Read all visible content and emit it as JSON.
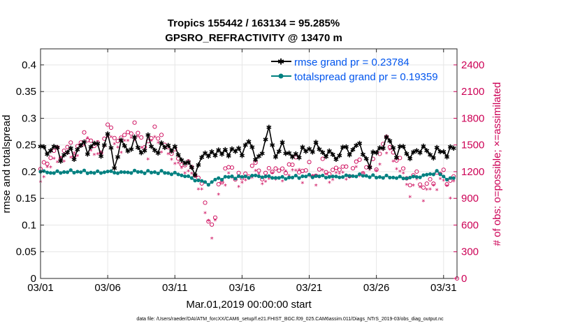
{
  "chart_data": {
    "type": "line",
    "title": "Tropics 155442 / 163134 = 95.285%",
    "subtitle": "GPSRO_REFRACTIVITY @ 13470 m",
    "xlabel": "Mar.01,2019 00:00:00 start",
    "ylabel": "rmse and totalspread",
    "y2label": "# of obs: o=possible; ×=assimilated",
    "footer": "data file: /Users/raeder/DAI/ATM_forcXX/CAM6_setup/f.e21.FHIST_BGC.f09_025.CAM6assim.011/Diags_NTrS_2019-03/obs_diag_output.nc",
    "x_tick_labels": [
      "03/01",
      "03/06",
      "03/11",
      "03/16",
      "03/21",
      "03/26",
      "03/31"
    ],
    "x_tick_days": [
      1,
      6,
      11,
      16,
      21,
      26,
      31
    ],
    "xlim_days": [
      1,
      32
    ],
    "ylim": [
      0,
      0.43
    ],
    "y_ticks": [
      0,
      0.05,
      0.1,
      0.15,
      0.2,
      0.25,
      0.3,
      0.35,
      0.4
    ],
    "y_tick_labels": [
      "0",
      "0.05",
      "0.1",
      "0.15",
      "0.2",
      "0.25",
      "0.3",
      "0.35",
      "0.4"
    ],
    "y2lim": [
      0,
      2580
    ],
    "y2_ticks": [
      0,
      300,
      600,
      900,
      1200,
      1500,
      1800,
      2100,
      2400
    ],
    "y2_tick_labels": [
      "0",
      "300",
      "600",
      "900",
      "1200",
      "1500",
      "1800",
      "2100",
      "2400"
    ],
    "colors": {
      "rmse": "#000000",
      "spread": "#008080",
      "obs": "#cc0055",
      "legend_text": "#0055ee",
      "axis": "#262626",
      "grid": "#e6e6e6"
    },
    "legend": [
      {
        "label": "rmse grand pr = 0.23784",
        "series": "rmse"
      },
      {
        "label": "totalspread grand pr = 0.19359",
        "series": "spread"
      }
    ],
    "rmse_anchors": {
      "x": [
        1.0,
        1.5,
        2.0,
        2.5,
        3.0,
        3.5,
        4.0,
        4.5,
        5.0,
        5.5,
        6.0,
        6.5,
        7.0,
        7.5,
        8.0,
        8.5,
        9.0,
        9.5,
        10.0,
        10.5,
        11.0,
        11.5,
        12.0,
        12.5,
        13.0,
        13.5,
        14.0,
        14.5,
        15.0,
        15.5,
        16.0,
        16.5,
        17.0,
        17.5,
        18.0,
        18.5,
        19.0,
        19.5,
        20.0,
        20.5,
        21.0,
        21.5,
        22.0,
        22.5,
        23.0,
        23.5,
        24.0,
        24.5,
        25.0,
        25.5,
        26.0,
        26.5,
        27.0,
        27.5,
        28.0,
        28.5,
        29.0,
        29.5,
        30.0,
        30.5,
        31.0,
        31.5,
        31.75
      ],
      "y": [
        0.248,
        0.235,
        0.25,
        0.225,
        0.24,
        0.23,
        0.253,
        0.24,
        0.255,
        0.235,
        0.27,
        0.21,
        0.255,
        0.24,
        0.258,
        0.235,
        0.26,
        0.24,
        0.245,
        0.25,
        0.24,
        0.225,
        0.213,
        0.2,
        0.225,
        0.238,
        0.23,
        0.243,
        0.23,
        0.248,
        0.23,
        0.265,
        0.22,
        0.24,
        0.278,
        0.23,
        0.248,
        0.235,
        0.225,
        0.245,
        0.235,
        0.255,
        0.23,
        0.24,
        0.22,
        0.25,
        0.232,
        0.255,
        0.235,
        0.215,
        0.24,
        0.25,
        0.262,
        0.23,
        0.25,
        0.225,
        0.24,
        0.245,
        0.23,
        0.24,
        0.235,
        0.24,
        0.245
      ]
    },
    "spread_anchors": {
      "x": [
        1.0,
        2.0,
        3.0,
        4.0,
        5.0,
        6.0,
        7.0,
        8.0,
        9.0,
        10.0,
        11.0,
        11.5,
        12.0,
        12.5,
        13.0,
        13.2,
        13.4,
        13.6,
        13.8,
        14.0,
        14.5,
        15.0,
        16.0,
        17.0,
        18.0,
        19.0,
        20.0,
        21.0,
        22.0,
        23.0,
        24.0,
        25.0,
        26.0,
        27.0,
        28.0,
        29.0,
        30.0,
        30.5,
        31.0,
        31.5,
        31.75
      ],
      "y": [
        0.2,
        0.198,
        0.2,
        0.2,
        0.198,
        0.2,
        0.198,
        0.2,
        0.199,
        0.199,
        0.196,
        0.194,
        0.19,
        0.185,
        0.182,
        0.18,
        0.178,
        0.178,
        0.18,
        0.185,
        0.188,
        0.19,
        0.19,
        0.192,
        0.19,
        0.188,
        0.19,
        0.192,
        0.191,
        0.19,
        0.192,
        0.193,
        0.19,
        0.19,
        0.188,
        0.19,
        0.195,
        0.2,
        0.19,
        0.186,
        0.188
      ]
    },
    "obs_possible_anchors": {
      "x": [
        1.0,
        1.5,
        2.0,
        2.5,
        3.0,
        3.5,
        4.0,
        4.5,
        5.0,
        5.5,
        6.0,
        6.5,
        7.0,
        7.5,
        8.0,
        8.5,
        9.0,
        9.5,
        10.0,
        10.5,
        11.0,
        11.5,
        12.0,
        12.5,
        13.0,
        13.2,
        13.5,
        13.7,
        13.9,
        14.2,
        14.5,
        15.0,
        15.5,
        16.0,
        16.5,
        17.0,
        17.5,
        18.0,
        18.5,
        19.0,
        19.5,
        20.0,
        20.5,
        21.0,
        21.5,
        22.0,
        22.5,
        23.0,
        23.5,
        24.0,
        24.5,
        25.0,
        25.5,
        26.0,
        26.5,
        27.0,
        27.5,
        28.0,
        28.5,
        29.0,
        29.5,
        30.0,
        30.5,
        31.0,
        31.5,
        31.75
      ],
      "y": [
        1230,
        1300,
        1450,
        1380,
        1500,
        1420,
        1550,
        1600,
        1500,
        1450,
        1720,
        1600,
        1550,
        1650,
        1700,
        1580,
        1480,
        1700,
        1550,
        1480,
        1400,
        1300,
        1280,
        1200,
        1050,
        850,
        700,
        600,
        520,
        1000,
        1150,
        1250,
        1180,
        1120,
        1200,
        1280,
        1150,
        1200,
        1250,
        1180,
        1280,
        1300,
        1200,
        1250,
        1150,
        1300,
        1180,
        1220,
        1280,
        1150,
        1350,
        1200,
        1300,
        1250,
        1550,
        1500,
        1350,
        1250,
        1050,
        1200,
        1000,
        1100,
        1150,
        1200,
        1050,
        1150
      ]
    },
    "obs_assimilated_anchors": {
      "x": [
        1.0,
        1.5,
        2.0,
        2.5,
        3.0,
        3.5,
        4.0,
        4.5,
        5.0,
        5.5,
        6.0,
        6.5,
        7.0,
        7.5,
        8.0,
        8.5,
        9.0,
        9.5,
        10.0,
        10.5,
        11.0,
        11.5,
        12.0,
        12.5,
        13.0,
        13.2,
        13.5,
        13.7,
        13.9,
        14.2,
        14.5,
        15.0,
        15.5,
        16.0,
        16.5,
        17.0,
        17.5,
        18.0,
        18.5,
        19.0,
        19.5,
        20.0,
        20.5,
        21.0,
        21.5,
        22.0,
        22.5,
        23.0,
        23.5,
        24.0,
        24.5,
        25.0,
        25.5,
        26.0,
        26.5,
        27.0,
        27.5,
        28.0,
        28.5,
        29.0,
        29.5,
        30.0,
        30.5,
        31.0,
        31.5,
        31.75
      ],
      "y": [
        1100,
        1200,
        1350,
        1300,
        1400,
        1350,
        1480,
        1530,
        1400,
        1380,
        1620,
        1500,
        1450,
        1550,
        1600,
        1480,
        1380,
        1600,
        1450,
        1400,
        1300,
        1230,
        1200,
        1120,
        980,
        750,
        620,
        520,
        470,
        920,
        1050,
        1150,
        1100,
        1050,
        1120,
        1200,
        1080,
        1120,
        1150,
        1100,
        1200,
        1220,
        1120,
        1150,
        1080,
        1200,
        1100,
        1150,
        1200,
        1080,
        1250,
        1120,
        1220,
        1150,
        1450,
        1400,
        1250,
        1150,
        950,
        1100,
        920,
        1000,
        1050,
        1100,
        950,
        1050
      ]
    }
  }
}
